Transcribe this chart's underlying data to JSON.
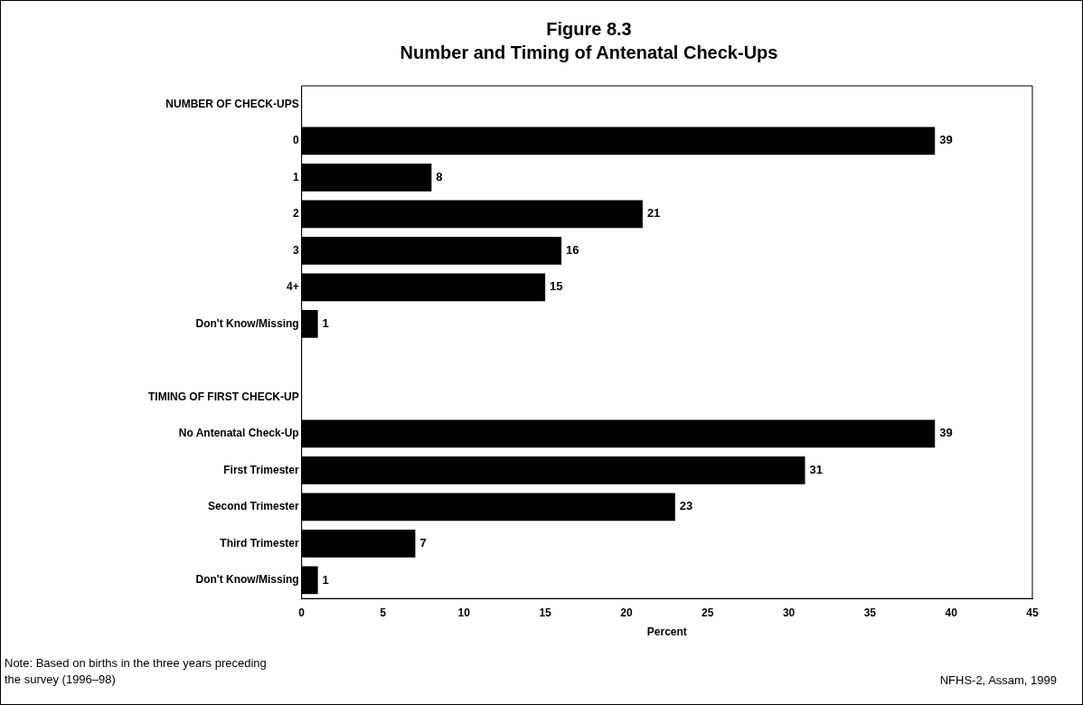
{
  "chart_data": {
    "type": "bar",
    "orientation": "horizontal",
    "title": "Figure 8.3",
    "subtitle": "Number and Timing of Antenatal Check-Ups",
    "xlabel": "Percent",
    "categories": [
      "NUMBER OF CHECK-UPS",
      "0",
      "1",
      "2",
      "3",
      "4+",
      "Don't Know/Missing",
      null,
      "TIMING OF FIRST CHECK-UP",
      "No Antenatal Check-Up",
      "First Trimester",
      "Second Trimester",
      "Third Trimester",
      "Don't Know/Missing"
    ],
    "values": [
      null,
      39,
      8,
      21,
      16,
      15,
      1,
      null,
      null,
      39,
      31,
      23,
      7,
      1
    ],
    "color": "#000000",
    "data_labels": true,
    "xlim": [
      0,
      45
    ],
    "xticks": [
      0,
      5,
      10,
      15,
      20,
      25,
      30,
      35,
      40,
      45
    ],
    "grid": false,
    "legend": false,
    "annotations": [
      "Note: Based on births in the three years preceding the survey (1996–98)",
      "NFHS-2, Assam, 1999"
    ]
  }
}
